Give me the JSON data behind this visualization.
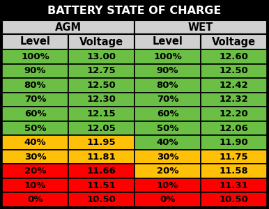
{
  "title": "BATTERY STATE OF CHARGE",
  "title_color": "#FFFFFF",
  "bg_color": "#000000",
  "header1": "AGM",
  "header2": "WET",
  "col_headers": [
    "Level",
    "Voltage",
    "Level",
    "Voltage"
  ],
  "col_header_bg": "#D0D0D0",
  "group_header_bg": "#D0D0D0",
  "rows": [
    {
      "level": "100%",
      "agm_v": "13.00",
      "wet_v": "12.60",
      "color_agm": "#6BBF44",
      "color_wet": "#6BBF44"
    },
    {
      "level": "90%",
      "agm_v": "12.75",
      "wet_v": "12.50",
      "color_agm": "#6BBF44",
      "color_wet": "#6BBF44"
    },
    {
      "level": "80%",
      "agm_v": "12.50",
      "wet_v": "12.42",
      "color_agm": "#6BBF44",
      "color_wet": "#6BBF44"
    },
    {
      "level": "70%",
      "agm_v": "12.30",
      "wet_v": "12.32",
      "color_agm": "#6BBF44",
      "color_wet": "#6BBF44"
    },
    {
      "level": "60%",
      "agm_v": "12.15",
      "wet_v": "12.20",
      "color_agm": "#6BBF44",
      "color_wet": "#6BBF44"
    },
    {
      "level": "50%",
      "agm_v": "12.05",
      "wet_v": "12.06",
      "color_agm": "#6BBF44",
      "color_wet": "#6BBF44"
    },
    {
      "level": "40%",
      "agm_v": "11.95",
      "wet_v": "11.90",
      "color_agm": "#FFC107",
      "color_wet": "#6BBF44"
    },
    {
      "level": "30%",
      "agm_v": "11.81",
      "wet_v": "11.75",
      "color_agm": "#FFC107",
      "color_wet": "#FFC107"
    },
    {
      "level": "20%",
      "agm_v": "11.66",
      "wet_v": "11.58",
      "color_agm": "#FF0000",
      "color_wet": "#FFC107"
    },
    {
      "level": "10%",
      "agm_v": "11.51",
      "wet_v": "11.31",
      "color_agm": "#FF0000",
      "color_wet": "#FF0000"
    },
    {
      "level": "0%",
      "agm_v": "10.50",
      "wet_v": "10.50",
      "color_agm": "#FF0000",
      "color_wet": "#FF0000"
    }
  ],
  "border_color": "#000000",
  "text_color": "#000000",
  "data_fontsize": 9.5,
  "header_fontsize": 10.5,
  "title_fontsize": 11.5
}
